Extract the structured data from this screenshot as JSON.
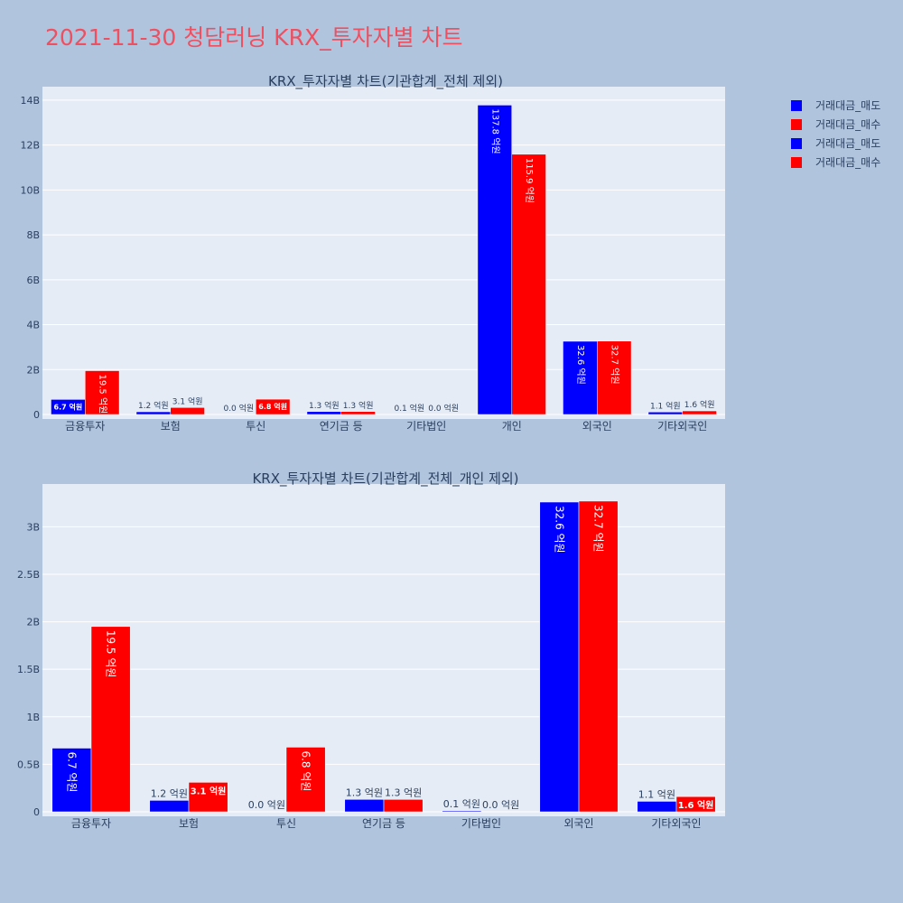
{
  "page_title": "2021-11-30 청담러닝 KRX_투자자별 차트",
  "colors": {
    "background": "#b0c4de",
    "plot_bg": "#e5ecf6",
    "sell": "#0000ff",
    "buy": "#ff0000",
    "title": "#ef4f5f",
    "text": "#2a3f5f"
  },
  "legend": [
    {
      "label": "거래대금_매도",
      "color": "#0000ff"
    },
    {
      "label": "거래대금_매수",
      "color": "#ff0000"
    },
    {
      "label": "거래대금_매도",
      "color": "#0000ff"
    },
    {
      "label": "거래대금_매수",
      "color": "#ff0000"
    }
  ],
  "chart_data": [
    {
      "type": "bar",
      "title": "KRX_투자자별 차트(기관합계_전체 제외)",
      "categories": [
        "금융투자",
        "보험",
        "투신",
        "연기금 등",
        "기타법인",
        "개인",
        "외국인",
        "기타외국인"
      ],
      "ylim": [
        0,
        14600000000
      ],
      "yticks": [
        0,
        2000000000,
        4000000000,
        6000000000,
        8000000000,
        10000000000,
        12000000000,
        14000000000
      ],
      "ytick_labels": [
        "0",
        "2B",
        "4B",
        "6B",
        "8B",
        "10B",
        "12B",
        "14B"
      ],
      "series": [
        {
          "name": "거래대금_매도",
          "color": "#0000ff",
          "values": [
            670000000,
            120000000,
            0,
            130000000,
            10000000,
            13780000000,
            3260000000,
            110000000
          ],
          "labels": [
            "6.7 억원",
            "1.2 억원",
            "0.0 억원",
            "1.3 억원",
            "0.1 억원",
            "137.8 억원",
            "32.6 억원",
            "1.1 억원"
          ]
        },
        {
          "name": "거래대금_매수",
          "color": "#ff0000",
          "values": [
            1950000000,
            310000000,
            680000000,
            130000000,
            0,
            11590000000,
            3270000000,
            160000000
          ],
          "labels": [
            "19.5 억원",
            "3.1 억원",
            "6.8 억원",
            "1.3 억원",
            "0.0 억원",
            "115.9 억원",
            "32.7 억원",
            "1.6 억원"
          ]
        }
      ]
    },
    {
      "type": "bar",
      "title": "KRX_투자자별 차트(기관합계_전체_개인 제외)",
      "categories": [
        "금융투자",
        "보험",
        "투신",
        "연기금 등",
        "기타법인",
        "외국인",
        "기타외국인"
      ],
      "ylim": [
        0,
        3450000000
      ],
      "yticks": [
        0,
        500000000,
        1000000000,
        1500000000,
        2000000000,
        2500000000,
        3000000000
      ],
      "ytick_labels": [
        "0",
        "0.5B",
        "1B",
        "1.5B",
        "2B",
        "2.5B",
        "3B"
      ],
      "series": [
        {
          "name": "거래대금_매도",
          "color": "#0000ff",
          "values": [
            670000000,
            120000000,
            0,
            130000000,
            10000000,
            3260000000,
            110000000
          ],
          "labels": [
            "6.7 억원",
            "1.2 억원",
            "0.0 억원",
            "1.3 억원",
            "0.1 억원",
            "32.6 억원",
            "1.1 억원"
          ]
        },
        {
          "name": "거래대금_매수",
          "color": "#ff0000",
          "values": [
            1950000000,
            310000000,
            680000000,
            130000000,
            0,
            3270000000,
            160000000
          ],
          "labels": [
            "19.5 억원",
            "3.1 억원",
            "6.8 억원",
            "1.3 억원",
            "0.0 억원",
            "32.7 억원",
            "1.6 억원"
          ]
        }
      ]
    }
  ]
}
